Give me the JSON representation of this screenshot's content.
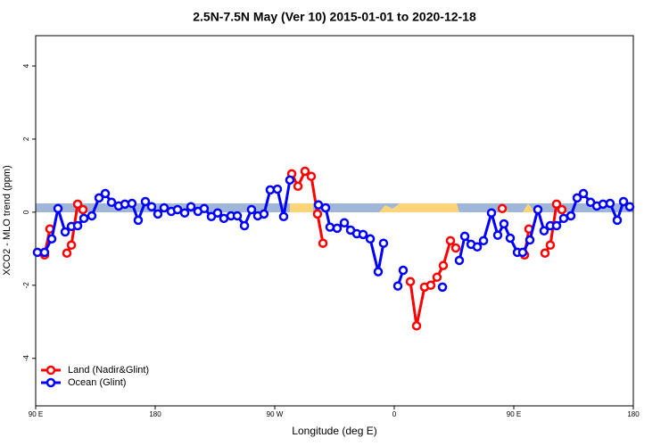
{
  "chart_data": {
    "type": "line",
    "title": "2.5N-7.5N May (Ver 10)   2015-01-01 to 2020-12-18",
    "x_label": "Longitude (deg E)",
    "y_label": "XCO2 - MLO trend (ppm)",
    "xlim": [
      90,
      540
    ],
    "ylim": [
      -5.3,
      4.83
    ],
    "xticks": [
      {
        "value": 90,
        "label": "90 E"
      },
      {
        "value": 180,
        "label": "180"
      },
      {
        "value": 270,
        "label": "90 W"
      },
      {
        "value": 360,
        "label": "0"
      },
      {
        "value": 450,
        "label": "90 E"
      },
      {
        "value": 540,
        "label": "180"
      }
    ],
    "yticks": [
      -4,
      -2,
      0,
      2,
      4
    ],
    "legend": "bottom-left",
    "series": [
      {
        "name": "Land (Nadir&Glint)",
        "color": "#ff0000",
        "x": [
          96.7,
          100.7,
          null,
          113.5,
          116.9,
          121.6,
          125.6,
          null,
          282.8,
          287.5,
          292.8,
          297.5,
          302.2,
          306.3,
          null,
          372.1,
          376.8,
          382.8,
          387.5,
          392.2,
          396.9,
          402.3,
          406.3,
          null,
          441.3,
          null,
          458.1,
          461.4,
          null,
          473.5,
          477.5,
          482.2,
          486.2
        ],
        "values": [
          -1.17,
          -0.46,
          null,
          -1.12,
          -0.9,
          0.22,
          0.07,
          null,
          1.05,
          0.71,
          1.12,
          0.98,
          -0.05,
          -0.85,
          null,
          -1.9,
          -3.11,
          -2.05,
          -2.0,
          -1.78,
          -1.46,
          -0.78,
          -0.98,
          null,
          0.1,
          null,
          -1.17,
          -0.46,
          null,
          -1.12,
          -0.9,
          0.22,
          0.07
        ]
      },
      {
        "name": "Ocean (Glint)",
        "color": "#0000ff",
        "x": [
          91.3,
          96.7,
          102.1,
          106.8,
          112.2,
          116.9,
          121.6,
          126.3,
          132.3,
          137.7,
          142.4,
          147.1,
          152.5,
          157.2,
          162.5,
          167.2,
          172.6,
          177.3,
          182.0,
          186.7,
          192.1,
          196.8,
          202.2,
          206.9,
          212.2,
          216.9,
          222.3,
          227.0,
          231.7,
          237.1,
          241.8,
          247.2,
          252.5,
          257.2,
          261.9,
          266.6,
          272.0,
          276.7,
          281.4,
          null,
          302.9,
          308.3,
          311.6,
          317.0,
          322.4,
          327.1,
          331.8,
          336.5,
          341.9,
          347.9,
          351.9,
          null,
          362.7,
          366.7,
          null,
          396.3,
          null,
          409.0,
          413.1,
          417.8,
          422.5,
          427.2,
          433.2,
          437.9,
          442.6,
          447.3,
          452.7,
          456.7,
          462.1,
          468.1,
          472.8,
          477.5,
          482.2,
          487.6,
          493.0,
          497.7,
          502.4,
          507.8,
          512.5,
          517.2,
          522.5,
          527.9,
          532.6,
          537.3
        ],
        "values": [
          -1.1,
          -1.1,
          -0.73,
          0.1,
          -0.54,
          -0.39,
          -0.37,
          -0.17,
          -0.1,
          0.39,
          0.51,
          0.27,
          0.17,
          0.22,
          0.24,
          -0.22,
          0.29,
          0.15,
          -0.05,
          0.12,
          0.02,
          0.07,
          -0.02,
          0.15,
          0.02,
          0.1,
          -0.12,
          -0.02,
          -0.17,
          -0.1,
          -0.1,
          -0.37,
          0.07,
          -0.1,
          -0.05,
          0.61,
          0.63,
          -0.12,
          0.88,
          null,
          0.2,
          0.12,
          -0.41,
          -0.44,
          -0.29,
          -0.49,
          -0.59,
          -0.61,
          -0.73,
          -1.63,
          -0.85,
          null,
          -2.02,
          -1.59,
          null,
          -2.05,
          null,
          -1.32,
          -0.66,
          -0.88,
          -0.95,
          -0.78,
          -0.02,
          -0.63,
          -0.32,
          -0.71,
          -1.1,
          -1.1,
          -0.76,
          0.07,
          -0.51,
          -0.37,
          -0.37,
          -0.17,
          -0.1,
          0.39,
          0.51,
          0.27,
          0.17,
          0.22,
          0.24,
          -0.22,
          0.29,
          0.15
        ]
      }
    ]
  }
}
